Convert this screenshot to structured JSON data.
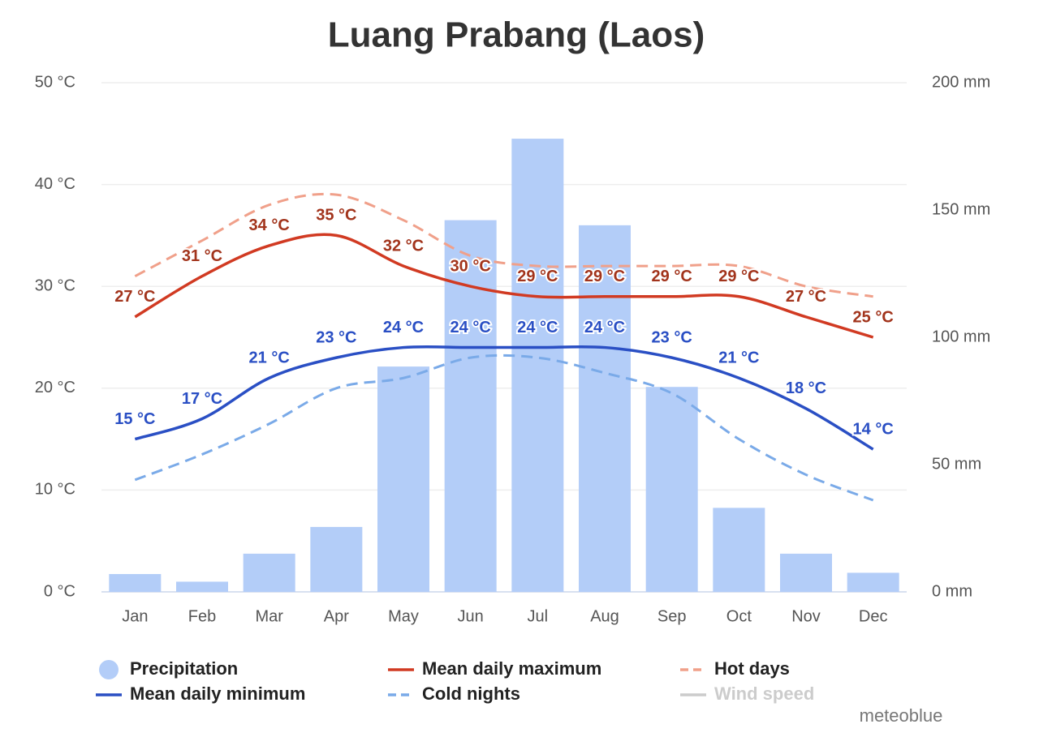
{
  "chart_data": {
    "type": "bar-line",
    "title": "Luang Prabang (Laos)",
    "categories": [
      "Jan",
      "Feb",
      "Mar",
      "Apr",
      "May",
      "Jun",
      "Jul",
      "Aug",
      "Sep",
      "Oct",
      "Nov",
      "Dec"
    ],
    "ylim": [
      0,
      50
    ],
    "yticks": [
      {
        "value": 0,
        "label": "0 °C"
      },
      {
        "value": 10,
        "label": "10 °C"
      },
      {
        "value": 20,
        "label": "20 °C"
      },
      {
        "value": 30,
        "label": "30 °C"
      },
      {
        "value": 40,
        "label": "40 °C"
      },
      {
        "value": 50,
        "label": "50 °C"
      }
    ],
    "y2lim": [
      0,
      200
    ],
    "y2ticks": [
      {
        "value": 0,
        "label": "0 mm"
      },
      {
        "value": 50,
        "label": "50 mm"
      },
      {
        "value": 100,
        "label": "100 mm"
      },
      {
        "value": 150,
        "label": "150 mm"
      },
      {
        "value": 200,
        "label": "200 mm"
      }
    ],
    "grid": true,
    "series": [
      {
        "name": "Precipitation",
        "type": "bar",
        "axis": "y2",
        "color": "#b3cdf8",
        "values": [
          7,
          4,
          15,
          25.5,
          88.5,
          146,
          178,
          144,
          80.5,
          33,
          15,
          7.5
        ]
      },
      {
        "name": "Mean daily maximum",
        "type": "line",
        "color": "#d13a22",
        "label_color": "#a2341c",
        "values": [
          27,
          31,
          34,
          35,
          32,
          30,
          29,
          29,
          29,
          29,
          27,
          25
        ],
        "value_labels": [
          "27 °C",
          "31 °C",
          "34 °C",
          "35 °C",
          "32 °C",
          "30 °C",
          "29 °C",
          "29 °C",
          "29 °C",
          "29 °C",
          "27 °C",
          "25 °C"
        ]
      },
      {
        "name": "Hot days",
        "type": "line",
        "dashed": true,
        "color": "#f0a08a",
        "values": [
          31,
          34.5,
          38,
          39,
          36.5,
          33,
          32,
          32,
          32,
          32,
          30,
          29
        ]
      },
      {
        "name": "Mean daily minimum",
        "type": "line",
        "color": "#2a4fc4",
        "label_color": "#2a4fc4",
        "values": [
          15,
          17,
          21,
          23,
          24,
          24,
          24,
          24,
          23,
          21,
          18,
          14
        ],
        "value_labels": [
          "15 °C",
          "17 °C",
          "21 °C",
          "23 °C",
          "24 °C",
          "24 °C",
          "24 °C",
          "24 °C",
          "23 °C",
          "21 °C",
          "18 °C",
          "14 °C"
        ]
      },
      {
        "name": "Cold nights",
        "type": "line",
        "dashed": true,
        "color": "#7aaae8",
        "values": [
          11,
          13.5,
          16.5,
          20,
          21,
          23,
          23,
          21.5,
          19.5,
          15,
          11.5,
          9
        ]
      },
      {
        "name": "Wind speed",
        "type": "line",
        "visible": false,
        "color": "#cccccc",
        "values": [
          null,
          null,
          null,
          null,
          null,
          null,
          null,
          null,
          null,
          null,
          null,
          null
        ]
      }
    ],
    "credit": "meteoblue"
  }
}
